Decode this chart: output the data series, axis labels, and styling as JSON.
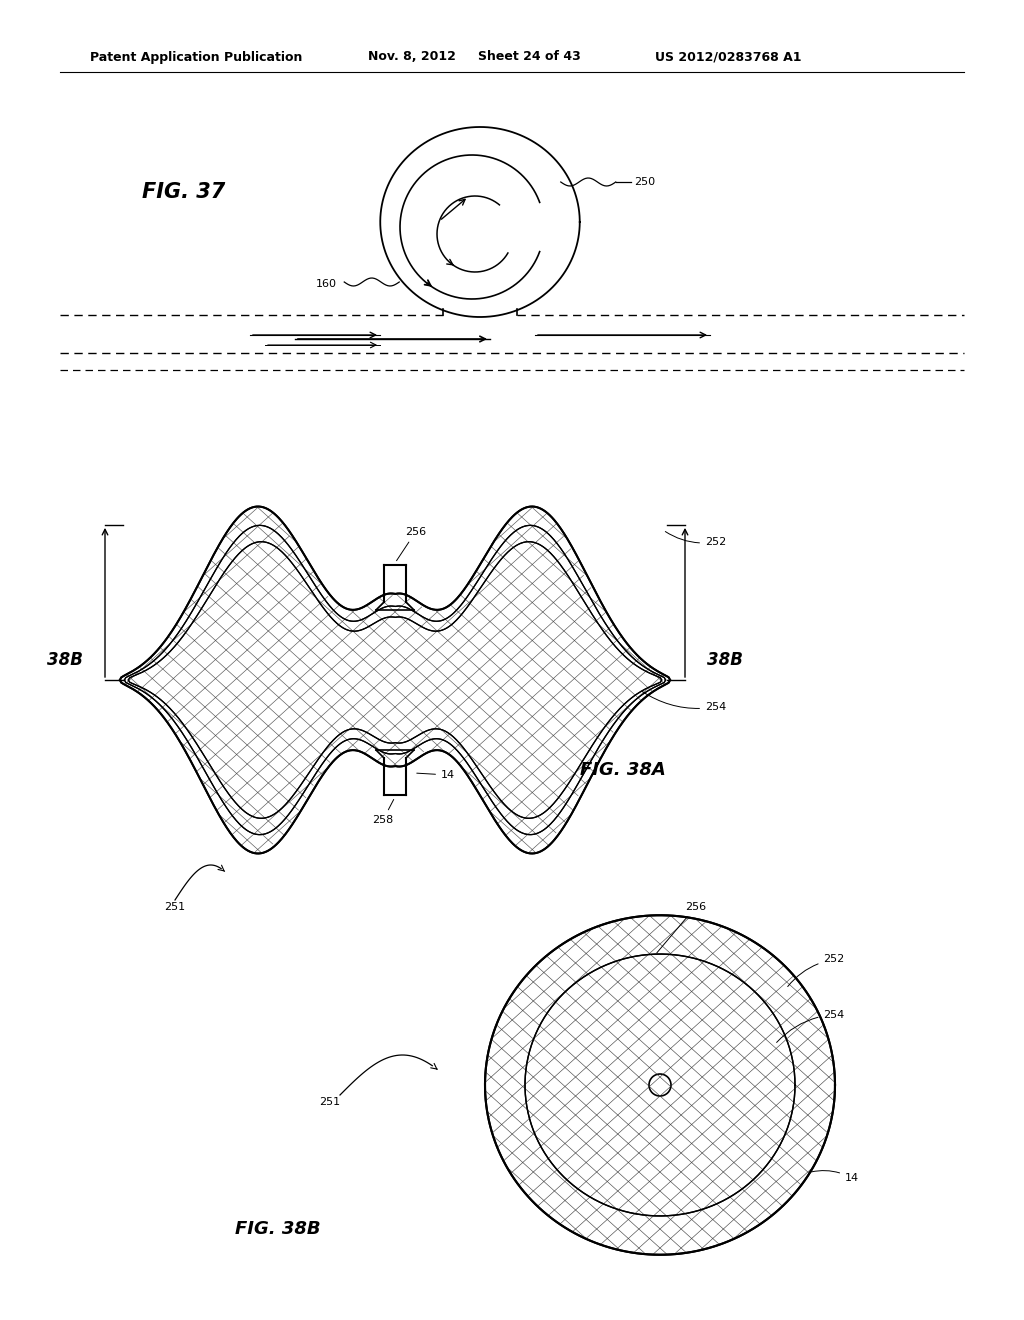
{
  "background_color": "#ffffff",
  "header_text": "Patent Application Publication",
  "header_date": "Nov. 8, 2012",
  "header_sheet": "Sheet 24 of 43",
  "header_patent": "US 2012/0283768 A1",
  "fig37_label": "FIG. 37",
  "fig38a_label": "FIG. 38A",
  "fig38b_label": "FIG. 38B",
  "label_250": "250",
  "label_160": "160",
  "label_252": "252",
  "label_254": "254",
  "label_256": "256",
  "label_258": "258",
  "label_14": "14",
  "label_251": "251",
  "label_38b_left": "38B",
  "label_38b_right": "38B",
  "line_color": "#000000",
  "text_color": "#000000"
}
